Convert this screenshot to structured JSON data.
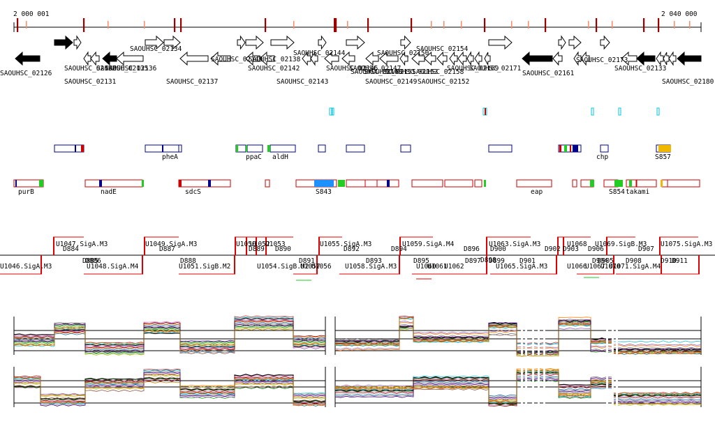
{
  "ruler": {
    "start_label": "2 000 001",
    "end_label": "2 040 000"
  },
  "colors": {
    "gene_fill": "#000000",
    "feature_blue": "#00008b",
    "feature_red": "#cc0000",
    "feature_cyan": "#00c8e0",
    "feature_green": "#22cc22",
    "feature_lightblue": "#1e90ff",
    "feature_orange": "#f0b800",
    "rna_red": "#dd0000",
    "tick_dark": "#9b0000",
    "tick_light": "#ff8a66"
  },
  "gene_labels": {
    "top": [
      "SAOUHSC_02132",
      "SAOUHSC_02135",
      "SAOUHSC_02134",
      "SAOUHSC_02136",
      "SAOUHSC_02140",
      "SAOUHSC_02138",
      "SAOUHSC_02142",
      "SAOUHSC_02144",
      "SAOUHSC_02146",
      "SAOUHSC_02147",
      "SAOUHSC_02148",
      "SAOUHSC_02150",
      "SAOUHSC_02151",
      "SAOUHSC_02153",
      "SAOUHSC_02154",
      "SAOUHSC_02158",
      "SAOUHSC_02169",
      "SAOUHSC_02171",
      "SAOUHSC_02173",
      "SAOUHSC_02133"
    ],
    "bottom": [
      "SAOUHSC_02126",
      "SAOUHSC_02131",
      "SAOUHSC_02137",
      "SAOUHSC_02143",
      "SAOUHSC_02149",
      "SAOUHSC_02152",
      "SAOUHSC_02161",
      "SAOUHSC_02180"
    ]
  },
  "track_a_labels": [
    "pheA",
    "ppaC",
    "aldH",
    "chp",
    "S857"
  ],
  "track_b_labels": [
    "purB",
    "nadE",
    "sdcS",
    "S843",
    "eap",
    "S854",
    "tak",
    "ami"
  ],
  "upper_labels": [
    "U1047.SigA.M3",
    "U1049.SigA.M3",
    "U1050",
    "U1053",
    "U1052",
    "U1055.SigA.M3",
    "U1059.SigA.M4",
    "U1063.SigA.M3",
    "U1068",
    "U1069.SigB.M3",
    "U1075.SigA.M3",
    "D884",
    "D887",
    "D889",
    "D890",
    "D892",
    "D894",
    "D896",
    "D898",
    "D900",
    "D902",
    "D903",
    "D906",
    "D907",
    "D909"
  ],
  "lower_labels": [
    "U1046.SigA.M3",
    "U1048.SigA.M4",
    "U1051.SigB.M2",
    "U1054.SigB.M2",
    "U1056",
    "U1057",
    "U1058.SigA.M3",
    "U1060",
    "U1061",
    "U1062",
    "U1065.SigA.M3",
    "U1066",
    "U1067",
    "U1070",
    "U1071.SigA.M4",
    "D885",
    "D886",
    "D888",
    "D891",
    "D893",
    "D895",
    "D897",
    "D899",
    "D901",
    "D904",
    "D905",
    "D908",
    "D910",
    "D911"
  ]
}
